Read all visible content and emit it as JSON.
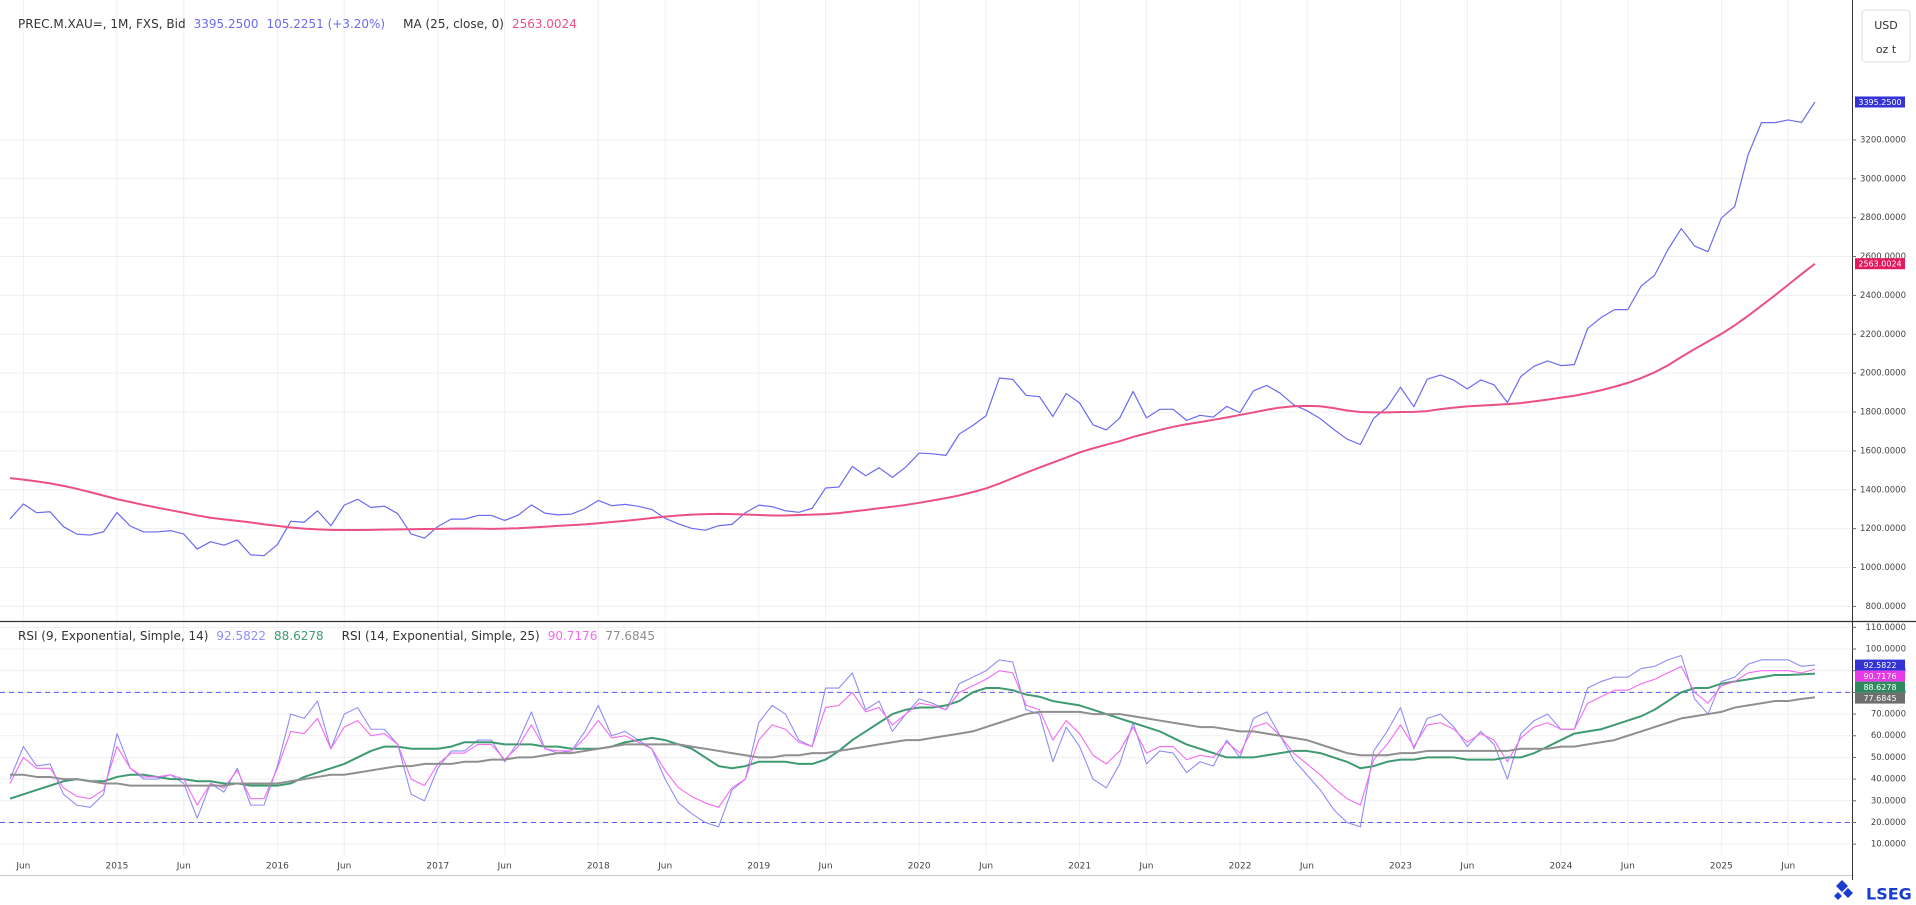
{
  "brand": "LSEG",
  "chart_data": [
    {
      "type": "line",
      "title": "PREC.M.XAU=, 1M, FXS, Bid",
      "change_label": "105.2251 (+3.20%)",
      "y_unit": [
        "USD",
        "oz t"
      ],
      "ylim": [
        730,
        3920
      ],
      "yticks": [
        {
          "value": 800,
          "label": "800.0000"
        },
        {
          "value": 1000,
          "label": "1000.0000"
        },
        {
          "value": 1200,
          "label": "1200.0000"
        },
        {
          "value": 1400,
          "label": "1400.0000"
        },
        {
          "value": 1600,
          "label": "1600.0000"
        },
        {
          "value": 1800,
          "label": "1800.0000"
        },
        {
          "value": 2000,
          "label": "2000.0000"
        },
        {
          "value": 2200,
          "label": "2200.0000"
        },
        {
          "value": 2400,
          "label": "2400.0000"
        },
        {
          "value": 2600,
          "label": "2600.0000"
        },
        {
          "value": 2800,
          "label": "2800.0000"
        },
        {
          "value": 3000,
          "label": "3000.0000"
        },
        {
          "value": 3200,
          "label": "3200.0000"
        }
      ],
      "grid": true,
      "series": [
        {
          "color": "#6b6bf2",
          "width": 1.2,
          "last_value_label": "3395.2500",
          "badge_color": "#3434d6",
          "values": [
            1250,
            1327,
            1282,
            1287,
            1210,
            1172,
            1167,
            1184,
            1283,
            1213,
            1183,
            1183,
            1190,
            1172,
            1095,
            1133,
            1115,
            1142,
            1065,
            1061,
            1118,
            1238,
            1233,
            1292,
            1215,
            1321,
            1351,
            1309,
            1316,
            1277,
            1173,
            1151,
            1211,
            1249,
            1249,
            1268,
            1268,
            1242,
            1269,
            1322,
            1280,
            1271,
            1275,
            1303,
            1345,
            1318,
            1325,
            1315,
            1299,
            1253,
            1224,
            1201,
            1192,
            1215,
            1222,
            1282,
            1321,
            1313,
            1292,
            1284,
            1305,
            1409,
            1414,
            1520,
            1472,
            1513,
            1464,
            1517,
            1589,
            1585,
            1577,
            1687,
            1730,
            1781,
            1975,
            1968,
            1886,
            1879,
            1777,
            1895,
            1847,
            1734,
            1708,
            1769,
            1906,
            1770,
            1814,
            1814,
            1757,
            1783,
            1774,
            1829,
            1797,
            1909,
            1937,
            1897,
            1838,
            1807,
            1766,
            1711,
            1661,
            1633,
            1768,
            1824,
            1928,
            1827,
            1969,
            1990,
            1963,
            1919,
            1965,
            1940,
            1849,
            1983,
            2036,
            2063,
            2039,
            2044,
            2230,
            2286,
            2327,
            2327,
            2448,
            2503,
            2635,
            2744,
            2654,
            2625,
            2798,
            2858,
            3124,
            3289,
            3289,
            3303,
            3290,
            3395.25
          ]
        },
        {
          "name": "MA (25, close, 0)",
          "color": "#ec4f86",
          "width": 2,
          "last_value_label": "2563.0024",
          "badge_color": "#e3195e",
          "values": [
            1460,
            1452,
            1443,
            1433,
            1420,
            1405,
            1388,
            1370,
            1352,
            1337,
            1322,
            1308,
            1295,
            1282,
            1268,
            1256,
            1248,
            1240,
            1232,
            1222,
            1214,
            1206,
            1200,
            1196,
            1194,
            1193,
            1193,
            1194,
            1195,
            1196,
            1197,
            1198,
            1199,
            1200,
            1201,
            1200,
            1199,
            1200,
            1202,
            1206,
            1210,
            1214,
            1218,
            1222,
            1228,
            1234,
            1240,
            1247,
            1255,
            1262,
            1268,
            1272,
            1275,
            1276,
            1275,
            1273,
            1270,
            1268,
            1268,
            1270,
            1272,
            1275,
            1280,
            1288,
            1296,
            1305,
            1313,
            1322,
            1333,
            1345,
            1357,
            1371,
            1388,
            1407,
            1432,
            1460,
            1488,
            1514,
            1540,
            1566,
            1592,
            1613,
            1632,
            1650,
            1672,
            1690,
            1708,
            1724,
            1737,
            1748,
            1760,
            1772,
            1785,
            1798,
            1812,
            1823,
            1830,
            1832,
            1830,
            1820,
            1808,
            1800,
            1798,
            1798,
            1800,
            1801,
            1805,
            1815,
            1823,
            1829,
            1833,
            1837,
            1841,
            1846,
            1855,
            1864,
            1874,
            1884,
            1897,
            1912,
            1930,
            1950,
            1975,
            2004,
            2040,
            2083,
            2124,
            2163,
            2202,
            2246,
            2295,
            2347,
            2400,
            2455,
            2510,
            2563.0024
          ]
        }
      ]
    },
    {
      "type": "line",
      "legend_groups": [
        "RSI (9, Exponential, Simple, 14)",
        "RSI (14, Exponential, Simple, 25)"
      ],
      "ylim": [
        5,
        112
      ],
      "yticks": [
        {
          "value": 10,
          "label": "10.0000"
        },
        {
          "value": 20,
          "label": "20.0000"
        },
        {
          "value": 30,
          "label": "30.0000"
        },
        {
          "value": 40,
          "label": "40.0000"
        },
        {
          "value": 50,
          "label": "50.0000"
        },
        {
          "value": 60,
          "label": "60.0000"
        },
        {
          "value": 70,
          "label": "70.0000"
        },
        {
          "value": 80,
          "label": "80.0000"
        },
        {
          "value": 90,
          "label": "90.0000"
        },
        {
          "value": 100,
          "label": "100.0000"
        },
        {
          "value": 110,
          "label": "110.0000"
        }
      ],
      "grid": true,
      "levels": [
        80,
        20
      ],
      "level_color": "#5a5af0",
      "categories": [
        null,
        "Jun",
        null,
        null,
        null,
        null,
        null,
        null,
        "2015",
        null,
        null,
        null,
        null,
        "Jun",
        null,
        null,
        null,
        null,
        null,
        null,
        "2016",
        null,
        null,
        null,
        null,
        "Jun",
        null,
        null,
        null,
        null,
        null,
        null,
        "2017",
        null,
        null,
        null,
        null,
        "Jun",
        null,
        null,
        null,
        null,
        null,
        null,
        "2018",
        null,
        null,
        null,
        null,
        "Jun",
        null,
        null,
        null,
        null,
        null,
        null,
        "2019",
        null,
        null,
        null,
        null,
        "Jun",
        null,
        null,
        null,
        null,
        null,
        null,
        "2020",
        null,
        null,
        null,
        null,
        "Jun",
        null,
        null,
        null,
        null,
        null,
        null,
        "2021",
        null,
        null,
        null,
        null,
        "Jun",
        null,
        null,
        null,
        null,
        null,
        null,
        "2022",
        null,
        null,
        null,
        null,
        "Jun",
        null,
        null,
        null,
        null,
        null,
        null,
        "2023",
        null,
        null,
        null,
        null,
        "Jun",
        null,
        null,
        null,
        null,
        null,
        null,
        "2024",
        null,
        null,
        null,
        null,
        "Jun",
        null,
        null,
        null,
        null,
        null,
        null,
        "2025",
        null,
        null,
        null,
        null,
        "Jun",
        null,
        null
      ],
      "series": [
        {
          "group": 0,
          "color": "#8e8ef6",
          "width": 1.1,
          "last_value_label": "92.5822",
          "badge_color": "#3434d6",
          "values": [
            40,
            55,
            46,
            47,
            33,
            28,
            27,
            33,
            61,
            45,
            40,
            40,
            42,
            38,
            22,
            38,
            34,
            45,
            28,
            28,
            46,
            70,
            68,
            76,
            54,
            70,
            73,
            63,
            63,
            56,
            33,
            30,
            45,
            53,
            53,
            58,
            58,
            48,
            57,
            71,
            54,
            52,
            53,
            62,
            74,
            60,
            62,
            58,
            54,
            40,
            29,
            24,
            20,
            18,
            35,
            40,
            66,
            74,
            70,
            58,
            55,
            82,
            82,
            89,
            72,
            76,
            62,
            70,
            77,
            75,
            72,
            84,
            87,
            90,
            95,
            94,
            72,
            70,
            48,
            64,
            55,
            40,
            36,
            47,
            66,
            47,
            53,
            52,
            43,
            48,
            46,
            58,
            50,
            68,
            71,
            60,
            49,
            42,
            35,
            26,
            20,
            18,
            53,
            62,
            73,
            54,
            68,
            70,
            64,
            55,
            62,
            56,
            40,
            61,
            67,
            70,
            63,
            63,
            82,
            85,
            87,
            87,
            91,
            92,
            95,
            97,
            77,
            70,
            85,
            87,
            93,
            95,
            95,
            95,
            92,
            92.5822
          ]
        },
        {
          "group": 0,
          "color": "#3f9a72",
          "width": 2,
          "last_value_label": "88.6278",
          "badge_color": "#2f8a60",
          "values": [
            31,
            33,
            35,
            37,
            39,
            40,
            39,
            39,
            41,
            42,
            42,
            41,
            40,
            40,
            39,
            39,
            38,
            38,
            37,
            37,
            37,
            38,
            41,
            43,
            45,
            47,
            50,
            53,
            55,
            55,
            54,
            54,
            54,
            55,
            57,
            57,
            57,
            56,
            56,
            56,
            55,
            55,
            54,
            54,
            54,
            55,
            57,
            58,
            59,
            58,
            56,
            54,
            50,
            46,
            45,
            46,
            48,
            48,
            48,
            47,
            47,
            49,
            53,
            58,
            62,
            66,
            70,
            72,
            73,
            73,
            74,
            76,
            80,
            82,
            82,
            81,
            79,
            78,
            76,
            75,
            74,
            72,
            70,
            68,
            66,
            64,
            62,
            59,
            56,
            54,
            52,
            50,
            50,
            50,
            51,
            52,
            53,
            53,
            52,
            50,
            48,
            45,
            46,
            48,
            49,
            49,
            50,
            50,
            50,
            49,
            49,
            49,
            50,
            50,
            52,
            55,
            58,
            61,
            62,
            63,
            65,
            67,
            69,
            72,
            76,
            80,
            82,
            82,
            84,
            85,
            86,
            87,
            88,
            88,
            88.3,
            88.6278
          ]
        },
        {
          "group": 1,
          "color": "#f26bf2",
          "width": 1.1,
          "last_value_label": "90.7176",
          "badge_color": "#e53ae5",
          "values": [
            38,
            50,
            45,
            45,
            36,
            32,
            31,
            35,
            55,
            45,
            41,
            41,
            42,
            40,
            28,
            38,
            36,
            44,
            31,
            31,
            45,
            62,
            61,
            68,
            54,
            64,
            67,
            60,
            61,
            56,
            40,
            37,
            47,
            52,
            52,
            56,
            56,
            49,
            55,
            65,
            54,
            53,
            53,
            59,
            67,
            59,
            60,
            57,
            54,
            44,
            36,
            32,
            29,
            27,
            36,
            40,
            58,
            65,
            63,
            57,
            55,
            73,
            74,
            80,
            71,
            73,
            65,
            70,
            75,
            74,
            72,
            80,
            83,
            86,
            90,
            89,
            74,
            72,
            58,
            67,
            61,
            51,
            47,
            53,
            64,
            52,
            55,
            55,
            49,
            51,
            50,
            57,
            52,
            64,
            66,
            60,
            52,
            47,
            42,
            36,
            31,
            28,
            49,
            56,
            65,
            55,
            65,
            66,
            63,
            57,
            61,
            58,
            48,
            59,
            64,
            66,
            63,
            63,
            75,
            78,
            81,
            81,
            84,
            86,
            89,
            92,
            80,
            75,
            83,
            85,
            89,
            90,
            90,
            90,
            89,
            90.7176
          ]
        },
        {
          "group": 1,
          "color": "#8f8f8f",
          "width": 2,
          "last_value_label": "77.6845",
          "badge_color": "#6e6e6e",
          "values": [
            42,
            42,
            41,
            41,
            40,
            40,
            39,
            38,
            38,
            37,
            37,
            37,
            37,
            37,
            37,
            37,
            37,
            38,
            38,
            38,
            38,
            39,
            40,
            41,
            42,
            42,
            43,
            44,
            45,
            46,
            46,
            47,
            47,
            47,
            48,
            48,
            49,
            49,
            50,
            50,
            51,
            52,
            52,
            53,
            54,
            55,
            56,
            56,
            56,
            56,
            56,
            55,
            54,
            53,
            52,
            51,
            50,
            50,
            51,
            51,
            52,
            52,
            53,
            54,
            55,
            56,
            57,
            58,
            58,
            59,
            60,
            61,
            62,
            64,
            66,
            68,
            70,
            71,
            71,
            71,
            71,
            70,
            70,
            70,
            69,
            68,
            67,
            66,
            65,
            64,
            64,
            63,
            62,
            62,
            61,
            60,
            59,
            58,
            56,
            54,
            52,
            51,
            51,
            51,
            52,
            52,
            53,
            53,
            53,
            53,
            53,
            53,
            53,
            54,
            54,
            54,
            55,
            55,
            56,
            57,
            58,
            60,
            62,
            64,
            66,
            68,
            69,
            70,
            71,
            73,
            74,
            75,
            76,
            76,
            77,
            77.6845
          ]
        }
      ]
    }
  ]
}
